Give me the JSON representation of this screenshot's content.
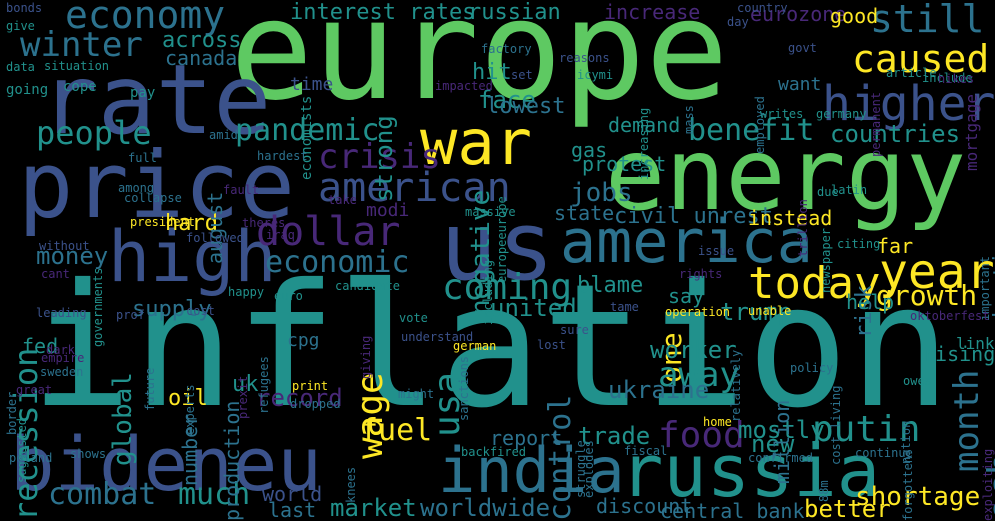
{
  "words": [
    {
      "text": "europe",
      "color": "#5ec962"
    },
    {
      "text": "inflation",
      "color": "#21918c"
    },
    {
      "text": "energy",
      "color": "#5ec962"
    },
    {
      "text": "price",
      "color": "#3b528b"
    },
    {
      "text": "war",
      "color": "#fde725"
    },
    {
      "text": "us",
      "color": "#3b528b"
    },
    {
      "text": "rate",
      "color": "#3b528b"
    },
    {
      "text": "high",
      "color": "#3b528b"
    },
    {
      "text": "russia",
      "color": "#21918c"
    },
    {
      "text": "india",
      "color": "#2c728e"
    },
    {
      "text": "bideneu",
      "color": "#3b528b"
    },
    {
      "text": "america",
      "color": "#2c728e"
    },
    {
      "text": "higher",
      "color": "#3b528b"
    },
    {
      "text": "year",
      "color": "#fde725"
    },
    {
      "text": "today",
      "color": "#fde725"
    },
    {
      "text": "economy",
      "color": "#2c728e"
    },
    {
      "text": "caused",
      "color": "#fde725"
    },
    {
      "text": "still",
      "color": "#2c728e"
    },
    {
      "text": "people",
      "color": "#21918c"
    },
    {
      "text": "pandemic",
      "color": "#21918c"
    },
    {
      "text": "benefit",
      "color": "#21918c"
    },
    {
      "text": "winter",
      "color": "#2c728e"
    },
    {
      "text": "american",
      "color": "#3b528b"
    },
    {
      "text": "crisis",
      "color": "#482878"
    },
    {
      "text": "countries",
      "color": "#21918c"
    },
    {
      "text": "dollar",
      "color": "#482878"
    },
    {
      "text": "recession",
      "color": "#21918c"
    },
    {
      "text": "economic",
      "color": "#2c728e"
    },
    {
      "text": "coming",
      "color": "#21918c"
    },
    {
      "text": "jobs",
      "color": "#2c728e"
    },
    {
      "text": "food",
      "color": "#482878"
    },
    {
      "text": "month",
      "color": "#2c728e"
    },
    {
      "text": "growth",
      "color": "#fde725"
    },
    {
      "text": "ecb",
      "color": "#2c728e"
    },
    {
      "text": "usa",
      "color": "#21918c"
    },
    {
      "text": "wage",
      "color": "#fde725"
    },
    {
      "text": "one",
      "color": "#fde725"
    },
    {
      "text": "away",
      "color": "#21918c"
    },
    {
      "text": "putin",
      "color": "#21918c"
    },
    {
      "text": "combat",
      "color": "#2c728e"
    },
    {
      "text": "much",
      "color": "#21918c"
    },
    {
      "text": "fuel",
      "color": "#fde725"
    },
    {
      "text": "control",
      "color": "#2c728e"
    },
    {
      "text": "shortage",
      "color": "#fde725"
    },
    {
      "text": "trade",
      "color": "#21918c"
    },
    {
      "text": "interest rates",
      "color": "#21918c"
    },
    {
      "text": "russian",
      "color": "#21918c"
    },
    {
      "text": "increase",
      "color": "#482878"
    },
    {
      "text": "eurozone",
      "color": "#482878"
    },
    {
      "text": "good",
      "color": "#fde725"
    },
    {
      "text": "across",
      "color": "#21918c"
    },
    {
      "text": "canada",
      "color": "#2c728e"
    },
    {
      "text": "strong",
      "color": "#21918c"
    },
    {
      "text": "face",
      "color": "#21918c"
    },
    {
      "text": "hit",
      "color": "#21918c"
    },
    {
      "text": "lowest",
      "color": "#2c728e"
    },
    {
      "text": "negative",
      "color": "#21918c"
    },
    {
      "text": "demand",
      "color": "#21918c"
    },
    {
      "text": "gas",
      "color": "#21918c"
    },
    {
      "text": "protest",
      "color": "#21918c"
    },
    {
      "text": "state",
      "color": "#2c728e"
    },
    {
      "text": "civil unrest",
      "color": "#2c728e"
    },
    {
      "text": "instead",
      "color": "#fde725"
    },
    {
      "text": "hurting",
      "color": "#2c728e"
    },
    {
      "text": "risk",
      "color": "#2c728e"
    },
    {
      "text": "far",
      "color": "#fde725"
    },
    {
      "text": "help",
      "color": "#21918c"
    },
    {
      "text": "say",
      "color": "#21918c"
    },
    {
      "text": "blame",
      "color": "#21918c"
    },
    {
      "text": "united",
      "color": "#21918c"
    },
    {
      "text": "supply",
      "color": "#2c728e"
    },
    {
      "text": "global",
      "color": "#21918c"
    },
    {
      "text": "money",
      "color": "#2c728e"
    },
    {
      "text": "hard",
      "color": "#fde725"
    },
    {
      "text": "august",
      "color": "#2c728e"
    },
    {
      "text": "fed",
      "color": "#21918c"
    },
    {
      "text": "cpg",
      "color": "#2c728e"
    },
    {
      "text": "uk",
      "color": "#21918c"
    },
    {
      "text": "oil",
      "color": "#fde725"
    },
    {
      "text": "record",
      "color": "#482878"
    },
    {
      "text": "worker",
      "color": "#21918c"
    },
    {
      "text": "ukraine",
      "color": "#2c728e"
    },
    {
      "text": "mostly",
      "color": "#21918c"
    },
    {
      "text": "new",
      "color": "#21918c"
    },
    {
      "text": "better",
      "color": "#fde725"
    },
    {
      "text": "market",
      "color": "#21918c"
    },
    {
      "text": "worldwide",
      "color": "#2c728e"
    },
    {
      "text": "discount",
      "color": "#2c728e"
    },
    {
      "text": "central bank",
      "color": "#2c728e"
    },
    {
      "text": "report",
      "color": "#2c728e"
    },
    {
      "text": "last",
      "color": "#2c728e"
    },
    {
      "text": "world",
      "color": "#3b528b"
    },
    {
      "text": "rising",
      "color": "#21918c"
    },
    {
      "text": "link",
      "color": "#21918c"
    },
    {
      "text": "million",
      "color": "#2c728e"
    },
    {
      "text": "number",
      "color": "#2c728e"
    },
    {
      "text": "production",
      "color": "#2c728e"
    },
    {
      "text": "trump",
      "color": "#21918c"
    },
    {
      "text": "modi",
      "color": "#482878"
    },
    {
      "text": "time",
      "color": "#3b528b"
    },
    {
      "text": "want",
      "color": "#2c728e"
    },
    {
      "text": "mortgage",
      "color": "#482878"
    },
    {
      "text": "bonds",
      "color": "#3b528b"
    },
    {
      "text": "country",
      "color": "#3b528b"
    },
    {
      "text": "day",
      "color": "#3b528b"
    },
    {
      "text": "govt",
      "color": "#3b528b"
    },
    {
      "text": "factory",
      "color": "#2c728e"
    },
    {
      "text": "reasons",
      "color": "#3b528b"
    },
    {
      "text": "icymi",
      "color": "#21918c"
    },
    {
      "text": "set",
      "color": "#3b528b"
    },
    {
      "text": "mass",
      "color": "#2c728e"
    },
    {
      "text": "increasing",
      "color": "#21918c"
    },
    {
      "text": "data",
      "color": "#21918c"
    },
    {
      "text": "situation",
      "color": "#21918c"
    },
    {
      "text": "going",
      "color": "#21918c"
    },
    {
      "text": "cope",
      "color": "#21918c"
    },
    {
      "text": "pay",
      "color": "#21918c"
    },
    {
      "text": "economists",
      "color": "#21918c"
    },
    {
      "text": "impacted",
      "color": "#482878"
    },
    {
      "text": "employed",
      "color": "#2c728e"
    },
    {
      "text": "permanent",
      "color": "#482878"
    },
    {
      "text": "article",
      "color": "#21918c"
    },
    {
      "text": "include",
      "color": "#21918c"
    },
    {
      "text": "hikes",
      "color": "#482878"
    },
    {
      "text": "writes",
      "color": "#21918c"
    },
    {
      "text": "germany",
      "color": "#21918c"
    },
    {
      "text": "amid",
      "color": "#2c728e"
    },
    {
      "text": "hardest",
      "color": "#2c728e"
    },
    {
      "text": "full",
      "color": "#2c728e"
    },
    {
      "text": "among",
      "color": "#2c728e"
    },
    {
      "text": "collapse",
      "color": "#2c728e"
    },
    {
      "text": "fault",
      "color": "#482878"
    },
    {
      "text": "president",
      "color": "#fde725"
    },
    {
      "text": "theres",
      "color": "#482878"
    },
    {
      "text": "iraq",
      "color": "#482878"
    },
    {
      "text": "take",
      "color": "#482878"
    },
    {
      "text": "followed",
      "color": "#3b528b"
    },
    {
      "text": "governments",
      "color": "#21918c"
    },
    {
      "text": "without",
      "color": "#3b528b"
    },
    {
      "text": "cant",
      "color": "#482878"
    },
    {
      "text": "europeeurope",
      "color": "#21918c"
    },
    {
      "text": "massive",
      "color": "#21918c"
    },
    {
      "text": "including",
      "color": "#21918c"
    },
    {
      "text": "trillion",
      "color": "#482878"
    },
    {
      "text": "due",
      "color": "#21918c"
    },
    {
      "text": "latin",
      "color": "#21918c"
    },
    {
      "text": "newspaper",
      "color": "#21918c"
    },
    {
      "text": "important",
      "color": "#2c728e"
    },
    {
      "text": "citing",
      "color": "#21918c"
    },
    {
      "text": "issue",
      "color": "#3b528b"
    },
    {
      "text": "rights",
      "color": "#482878"
    },
    {
      "text": "leading",
      "color": "#3b528b"
    },
    {
      "text": "prof",
      "color": "#3b528b"
    },
    {
      "text": "cost",
      "color": "#3b528b"
    },
    {
      "text": "happy",
      "color": "#21918c"
    },
    {
      "text": "euro",
      "color": "#21918c"
    },
    {
      "text": "candidate",
      "color": "#21918c"
    },
    {
      "text": "vote",
      "color": "#21918c"
    },
    {
      "text": "understand",
      "color": "#3b528b"
    },
    {
      "text": "tame",
      "color": "#3b528b"
    },
    {
      "text": "operation",
      "color": "#fde725"
    },
    {
      "text": "unable",
      "color": "#fde725"
    },
    {
      "text": "oktoberfest",
      "color": "#482878"
    },
    {
      "text": "sure",
      "color": "#3b528b"
    },
    {
      "text": "german",
      "color": "#fde725"
    },
    {
      "text": "lost",
      "color": "#3b528b"
    },
    {
      "text": "giving",
      "color": "#482878"
    },
    {
      "text": "policy",
      "color": "#2c728e"
    },
    {
      "text": "relatively",
      "color": "#2c728e"
    },
    {
      "text": "cost living",
      "color": "#2c728e"
    },
    {
      "text": "owes",
      "color": "#21918c"
    },
    {
      "text": "dark",
      "color": "#482878"
    },
    {
      "text": "empire",
      "color": "#482878"
    },
    {
      "text": "great",
      "color": "#482878"
    },
    {
      "text": "sweden",
      "color": "#2c728e"
    },
    {
      "text": "future",
      "color": "#2c728e"
    },
    {
      "text": "experts",
      "color": "#2c728e"
    },
    {
      "text": "border",
      "color": "#2c728e"
    },
    {
      "text": "print",
      "color": "#fde725"
    },
    {
      "text": "refugees",
      "color": "#2c728e"
    },
    {
      "text": "dropped",
      "color": "#2c728e"
    },
    {
      "text": "might",
      "color": "#2c728e"
    },
    {
      "text": "sanctions",
      "color": "#2c728e"
    },
    {
      "text": "explodes",
      "color": "#2c728e"
    },
    {
      "text": "struggle",
      "color": "#2c728e"
    },
    {
      "text": "fiscal",
      "color": "#2c728e"
    },
    {
      "text": "home",
      "color": "#fde725"
    },
    {
      "text": "confirmed",
      "color": "#2c728e"
    },
    {
      "text": "continue",
      "color": "#2c728e"
    },
    {
      "text": "nation",
      "color": "#2c728e"
    },
    {
      "text": "exploiting",
      "color": "#482878"
    },
    {
      "text": "forgotten",
      "color": "#2c728e"
    },
    {
      "text": "prexit",
      "color": "#482878"
    },
    {
      "text": "backfired",
      "color": "#21918c"
    },
    {
      "text": "suggested",
      "color": "#21918c"
    },
    {
      "text": "poland",
      "color": "#2c728e"
    },
    {
      "text": "shows",
      "color": "#2c728e"
    },
    {
      "text": "knees",
      "color": "#2c728e"
    },
    {
      "text": "88m",
      "color": "#2c728e"
    },
    {
      "text": "give",
      "color": "#21918c"
    }
  ]
}
